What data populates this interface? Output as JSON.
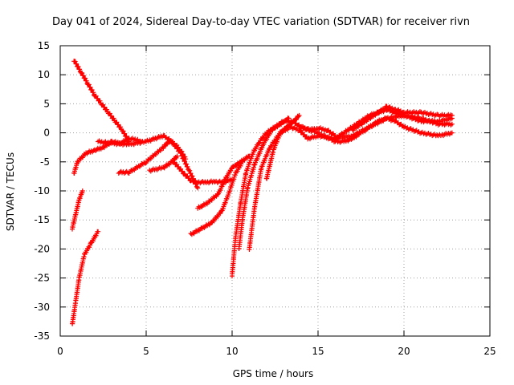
{
  "chart_data": {
    "type": "scatter",
    "title": "Day 041 of 2024, Sidereal Day-to-day VTEC variation (SDTVAR) for receiver rivn",
    "xlabel": "GPS time / hours",
    "ylabel": "SDTVAR / TECUs",
    "xlim": [
      0,
      25
    ],
    "ylim": [
      -35,
      15
    ],
    "xticks": [
      0,
      5,
      10,
      15,
      20,
      25
    ],
    "yticks": [
      15,
      10,
      5,
      0,
      -5,
      -10,
      -15,
      -20,
      -25,
      -30,
      -35
    ],
    "xtick_labels": [
      "0",
      "5",
      "10",
      "15",
      "20",
      "25"
    ],
    "ytick_labels": [
      "15",
      "10",
      "5",
      "0",
      "-5",
      "-10",
      "-15",
      "-20",
      "-25",
      "-30",
      "-35"
    ],
    "grid": true,
    "marker": "+",
    "color": "#ff0000",
    "series": [
      {
        "name": "arc-1",
        "x": [
          0.8,
          1.2,
          1.6,
          2.0,
          2.4,
          2.8,
          3.2,
          3.6,
          4.0
        ],
        "y": [
          12.5,
          10.5,
          8.5,
          6.5,
          5.0,
          3.5,
          2.0,
          0.5,
          -1.5
        ]
      },
      {
        "name": "arc-2",
        "x": [
          0.8,
          1.0,
          1.5,
          2.0,
          2.5,
          3.0,
          3.5,
          4.0,
          4.5,
          4.7
        ],
        "y": [
          -7.0,
          -5.0,
          -3.5,
          -3.0,
          -2.5,
          -1.5,
          -1.8,
          -1.0,
          -1.2,
          -1.5
        ]
      },
      {
        "name": "arc-3",
        "x": [
          0.7,
          0.9,
          1.1,
          1.3
        ],
        "y": [
          -16.5,
          -14.0,
          -11.5,
          -10.0
        ]
      },
      {
        "name": "arc-4",
        "x": [
          0.7,
          0.9,
          1.1,
          1.4,
          1.8,
          2.2
        ],
        "y": [
          -33.0,
          -29.0,
          -25.0,
          -21.0,
          -19.0,
          -17.0
        ]
      },
      {
        "name": "arc-5",
        "x": [
          2.2,
          3.0,
          4.0,
          5.0,
          6.0,
          6.5,
          7.0,
          7.5,
          8.0
        ],
        "y": [
          -1.5,
          -1.8,
          -2.0,
          -1.5,
          -0.5,
          -1.5,
          -3.5,
          -6.5,
          -9.5
        ]
      },
      {
        "name": "arc-6",
        "x": [
          3.4,
          4.0,
          5.0,
          6.0,
          6.3,
          6.7,
          7.0,
          7.3
        ],
        "y": [
          -6.8,
          -6.8,
          -5.0,
          -2.5,
          -1.5,
          -2.0,
          -3.0,
          -4.5
        ]
      },
      {
        "name": "arc-7",
        "x": [
          5.2,
          6.0,
          6.5,
          6.8
        ],
        "y": [
          -6.5,
          -6.0,
          -5.0,
          -4.0
        ]
      },
      {
        "name": "arc-8",
        "x": [
          6.6,
          7.2,
          7.6,
          8.0,
          8.5,
          9.0,
          9.5,
          10.0
        ],
        "y": [
          -5.0,
          -7.0,
          -8.2,
          -8.5,
          -8.5,
          -8.4,
          -8.5,
          -8.0
        ]
      },
      {
        "name": "arc-9",
        "x": [
          7.6,
          8.2,
          8.8,
          9.4,
          9.8,
          10.2,
          10.6
        ],
        "y": [
          -17.5,
          -16.5,
          -15.5,
          -13.5,
          -10.5,
          -7.0,
          -5.0
        ]
      },
      {
        "name": "arc-10",
        "x": [
          8.0,
          8.6,
          9.2,
          9.6,
          10.0,
          10.5,
          11.0
        ],
        "y": [
          -13.0,
          -12.0,
          -10.5,
          -8.0,
          -6.0,
          -5.0,
          -4.0
        ]
      },
      {
        "name": "arc-11",
        "x": [
          10.0,
          10.2,
          10.5,
          10.8,
          11.2,
          11.6,
          12.0,
          12.5,
          13.0,
          13.5,
          14.0,
          14.5,
          15.0,
          15.5,
          16.0
        ],
        "y": [
          -24.5,
          -18.0,
          -12.0,
          -7.0,
          -3.5,
          -1.5,
          0.0,
          1.0,
          2.0,
          2.0,
          1.0,
          0.5,
          0.8,
          0.5,
          -0.5
        ]
      },
      {
        "name": "arc-12",
        "x": [
          10.4,
          10.6,
          10.9,
          11.3,
          11.8,
          12.3,
          12.8,
          13.3
        ],
        "y": [
          -20.0,
          -15.0,
          -9.5,
          -5.5,
          -2.0,
          0.5,
          1.5,
          2.5
        ]
      },
      {
        "name": "arc-13",
        "x": [
          11.0,
          11.3,
          11.7,
          12.2,
          12.8,
          13.4,
          13.9,
          14.4,
          15.0,
          16.0,
          17.0,
          18.0,
          19.0,
          20.0,
          21.0,
          22.0,
          22.8
        ],
        "y": [
          -20.0,
          -13.0,
          -6.0,
          -2.5,
          0.0,
          1.0,
          0.5,
          -1.0,
          -0.5,
          -1.0,
          -0.5,
          1.0,
          2.5,
          3.0,
          2.0,
          2.0,
          2.5
        ]
      },
      {
        "name": "arc-14",
        "x": [
          12.0,
          12.4,
          12.8,
          13.2,
          13.6,
          13.9
        ],
        "y": [
          -8.0,
          -3.0,
          0.0,
          1.0,
          2.0,
          3.0
        ]
      },
      {
        "name": "arc-15",
        "x": [
          14.0,
          15.0,
          16.0,
          16.5,
          17.0,
          17.5,
          18.0,
          18.5,
          19.0,
          19.5,
          20.0,
          21.0,
          22.0,
          22.8
        ],
        "y": [
          1.0,
          0.0,
          -1.5,
          -1.5,
          -1.0,
          0.0,
          1.0,
          2.0,
          2.5,
          2.0,
          1.0,
          0.0,
          -0.5,
          0.0
        ]
      },
      {
        "name": "arc-16",
        "x": [
          16.0,
          16.5,
          17.0,
          17.5,
          18.0,
          18.5,
          19.0,
          19.5,
          20.0,
          21.0,
          22.0,
          22.8
        ],
        "y": [
          -1.0,
          0.0,
          1.0,
          2.0,
          3.0,
          3.5,
          4.0,
          3.5,
          3.0,
          2.5,
          1.5,
          1.5
        ]
      },
      {
        "name": "arc-17",
        "x": [
          17.0,
          17.5,
          18.0,
          18.5,
          19.0,
          19.5,
          20.0,
          21.0,
          22.0,
          22.8
        ],
        "y": [
          0.5,
          1.5,
          2.5,
          3.5,
          4.5,
          4.0,
          3.5,
          3.5,
          3.0,
          3.0
        ]
      }
    ]
  }
}
